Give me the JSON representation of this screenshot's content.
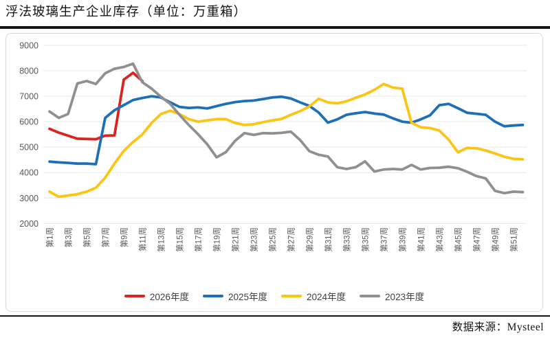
{
  "header": {
    "title": "浮法玻璃生产企业库存（单位：万重箱）"
  },
  "footer": {
    "source_label": "数据来源：Mysteel"
  },
  "chart_data": {
    "type": "line",
    "title": "浮法玻璃生产企业库存",
    "unit": "万重箱",
    "ylim": [
      2000,
      9000
    ],
    "y_ticks": [
      2000,
      3000,
      4000,
      5000,
      6000,
      7000,
      8000,
      9000
    ],
    "grid": true,
    "legend_position": "bottom",
    "x_weeks_total": 52,
    "x_tick_labels": [
      "第1周",
      "第3周",
      "第5周",
      "第7周",
      "第9周",
      "第11周",
      "第13周",
      "第15周",
      "第17周",
      "第19周",
      "第21周",
      "第23周",
      "第25周",
      "第27周",
      "第29周",
      "第31周",
      "第33周",
      "第35周",
      "第37周",
      "第39周",
      "第41周",
      "第43周",
      "第45周",
      "第47周",
      "第49周",
      "第51周"
    ],
    "colors": {
      "grid": "#e7e7e7",
      "axis_text": "#595959",
      "frame_border": "#d9d9d9",
      "red": "#dc231e",
      "blue": "#1d70b7",
      "yellow": "#fcc413",
      "gray": "#909090"
    },
    "series": [
      {
        "name": "2026年度",
        "color": "#dc231e",
        "start_week": 1,
        "values": [
          5720,
          5570,
          5450,
          5330,
          5320,
          5310,
          5450,
          5460,
          7650,
          7920,
          7600
        ]
      },
      {
        "name": "2025年度",
        "color": "#1d70b7",
        "start_week": 1,
        "values": [
          4430,
          4400,
          4380,
          4350,
          4350,
          4330,
          6150,
          6450,
          6650,
          6850,
          6930,
          7000,
          6950,
          6760,
          6580,
          6540,
          6560,
          6520,
          6610,
          6700,
          6770,
          6810,
          6830,
          6890,
          6950,
          6980,
          6910,
          6760,
          6620,
          6360,
          5960,
          6090,
          6270,
          6330,
          6380,
          6320,
          6280,
          6130,
          6000,
          5960,
          6090,
          6250,
          6650,
          6700,
          6530,
          6350,
          6310,
          6270,
          6000,
          5820,
          5850,
          5870
        ]
      },
      {
        "name": "2024年度",
        "color": "#fcc413",
        "start_week": 1,
        "values": [
          3250,
          3050,
          3100,
          3150,
          3250,
          3400,
          3800,
          4350,
          4850,
          5200,
          5500,
          5950,
          6300,
          6430,
          6300,
          6100,
          6000,
          6050,
          6100,
          6100,
          5950,
          5870,
          5900,
          5980,
          6050,
          6110,
          6270,
          6410,
          6600,
          6900,
          6760,
          6720,
          6800,
          6940,
          7070,
          7250,
          7480,
          7340,
          7300,
          5960,
          5780,
          5750,
          5650,
          5300,
          4800,
          4970,
          4950,
          4870,
          4750,
          4620,
          4540,
          4520
        ]
      },
      {
        "name": "2023年度",
        "color": "#909090",
        "start_week": 1,
        "values": [
          6400,
          6150,
          6300,
          7500,
          7600,
          7480,
          7900,
          8080,
          8150,
          8280,
          7550,
          7300,
          6980,
          6700,
          6270,
          5870,
          5510,
          5110,
          4600,
          4800,
          5250,
          5550,
          5480,
          5550,
          5540,
          5560,
          5610,
          5280,
          4840,
          4700,
          4630,
          4210,
          4140,
          4210,
          4440,
          4040,
          4120,
          4140,
          4120,
          4300,
          4120,
          4180,
          4190,
          4230,
          4170,
          4030,
          3860,
          3770,
          3280,
          3190,
          3250,
          3230
        ]
      }
    ]
  }
}
